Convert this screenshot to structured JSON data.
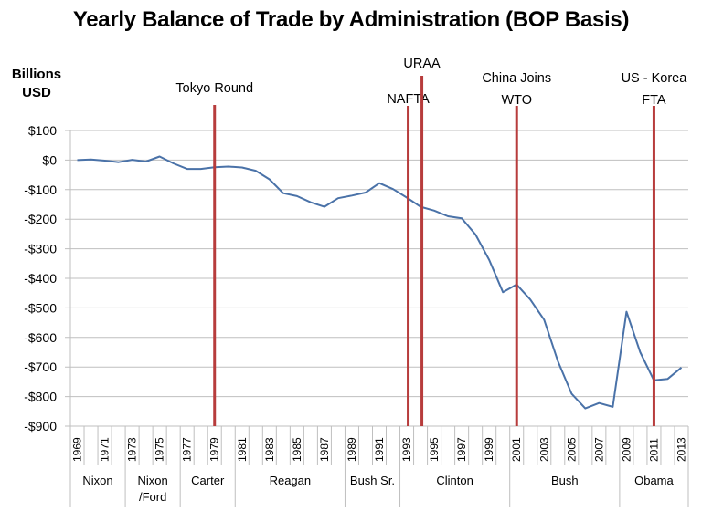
{
  "chart_data": {
    "type": "line",
    "title": "Yearly Balance of Trade by Administration (BOP Basis)",
    "ylabel": "Billions USD",
    "xlabel": "",
    "ylim": [
      -900,
      100
    ],
    "yticks": [
      100,
      0,
      -100,
      -200,
      -300,
      -400,
      -500,
      -600,
      -700,
      -800,
      -900
    ],
    "ytick_labels": [
      "$100",
      "$0",
      "-$100",
      "-$200",
      "-$300",
      "-$400",
      "-$500",
      "-$600",
      "-$700",
      "-$800",
      "-$900"
    ],
    "grid": true,
    "legend": "none",
    "x": [
      1969,
      1970,
      1971,
      1972,
      1973,
      1974,
      1975,
      1976,
      1977,
      1978,
      1979,
      1980,
      1981,
      1982,
      1983,
      1984,
      1985,
      1986,
      1987,
      1988,
      1989,
      1990,
      1991,
      1992,
      1993,
      1994,
      1995,
      1996,
      1997,
      1998,
      1999,
      2000,
      2001,
      2002,
      2003,
      2004,
      2005,
      2006,
      2007,
      2008,
      2009,
      2010,
      2011,
      2012,
      2013
    ],
    "xtick_labels": [
      "1969",
      "1971",
      "1973",
      "1975",
      "1977",
      "1979",
      "1981",
      "1983",
      "1985",
      "1987",
      "1989",
      "1991",
      "1993",
      "1995",
      "1997",
      "1999",
      "2001",
      "2003",
      "2005",
      "2007",
      "2009",
      "2011",
      "2013"
    ],
    "series": [
      {
        "name": "Balance of Trade",
        "color": "#4a72a8",
        "values": [
          0,
          2,
          -2,
          -7,
          1,
          -5,
          12,
          -11,
          -30,
          -30,
          -24,
          -22,
          -25,
          -36,
          -65,
          -112,
          -122,
          -143,
          -158,
          -129,
          -120,
          -110,
          -78,
          -98,
          -127,
          -158,
          -171,
          -190,
          -197,
          -252,
          -338,
          -447,
          -421,
          -472,
          -540,
          -680,
          -790,
          -840,
          -822,
          -835,
          -513,
          -650,
          -745,
          -740,
          -702
        ]
      }
    ],
    "administrations": [
      {
        "name": "Nixon",
        "start": 1969,
        "end": 1972
      },
      {
        "name": "Nixon /Ford",
        "line1": "Nixon",
        "line2": "/Ford",
        "start": 1973,
        "end": 1976
      },
      {
        "name": "Carter",
        "start": 1977,
        "end": 1980
      },
      {
        "name": "Reagan",
        "start": 1981,
        "end": 1988
      },
      {
        "name": "Bush Sr.",
        "start": 1989,
        "end": 1992
      },
      {
        "name": "Clinton",
        "start": 1993,
        "end": 2000
      },
      {
        "name": "Bush",
        "start": 2001,
        "end": 2008
      },
      {
        "name": "Obama",
        "start": 2009,
        "end": 2013
      }
    ],
    "annotations": [
      {
        "label_lines": [
          "Tokyo Round"
        ],
        "x": 1979.5,
        "color": "#b73c3c"
      },
      {
        "label_lines": [
          "NAFTA"
        ],
        "x": 1993.6,
        "color": "#b73c3c"
      },
      {
        "label_lines": [
          "URAA"
        ],
        "x": 1994.6,
        "color": "#b73c3c"
      },
      {
        "label_lines": [
          "China Joins",
          "WTO"
        ],
        "x": 2001.5,
        "color": "#b73c3c"
      },
      {
        "label_lines": [
          "US - Korea",
          "FTA"
        ],
        "x": 2011.5,
        "color": "#b73c3c"
      }
    ]
  },
  "colors": {
    "line": "#4a72a8",
    "event_line": "#b73c3c",
    "grid": "#bfbfbf"
  }
}
